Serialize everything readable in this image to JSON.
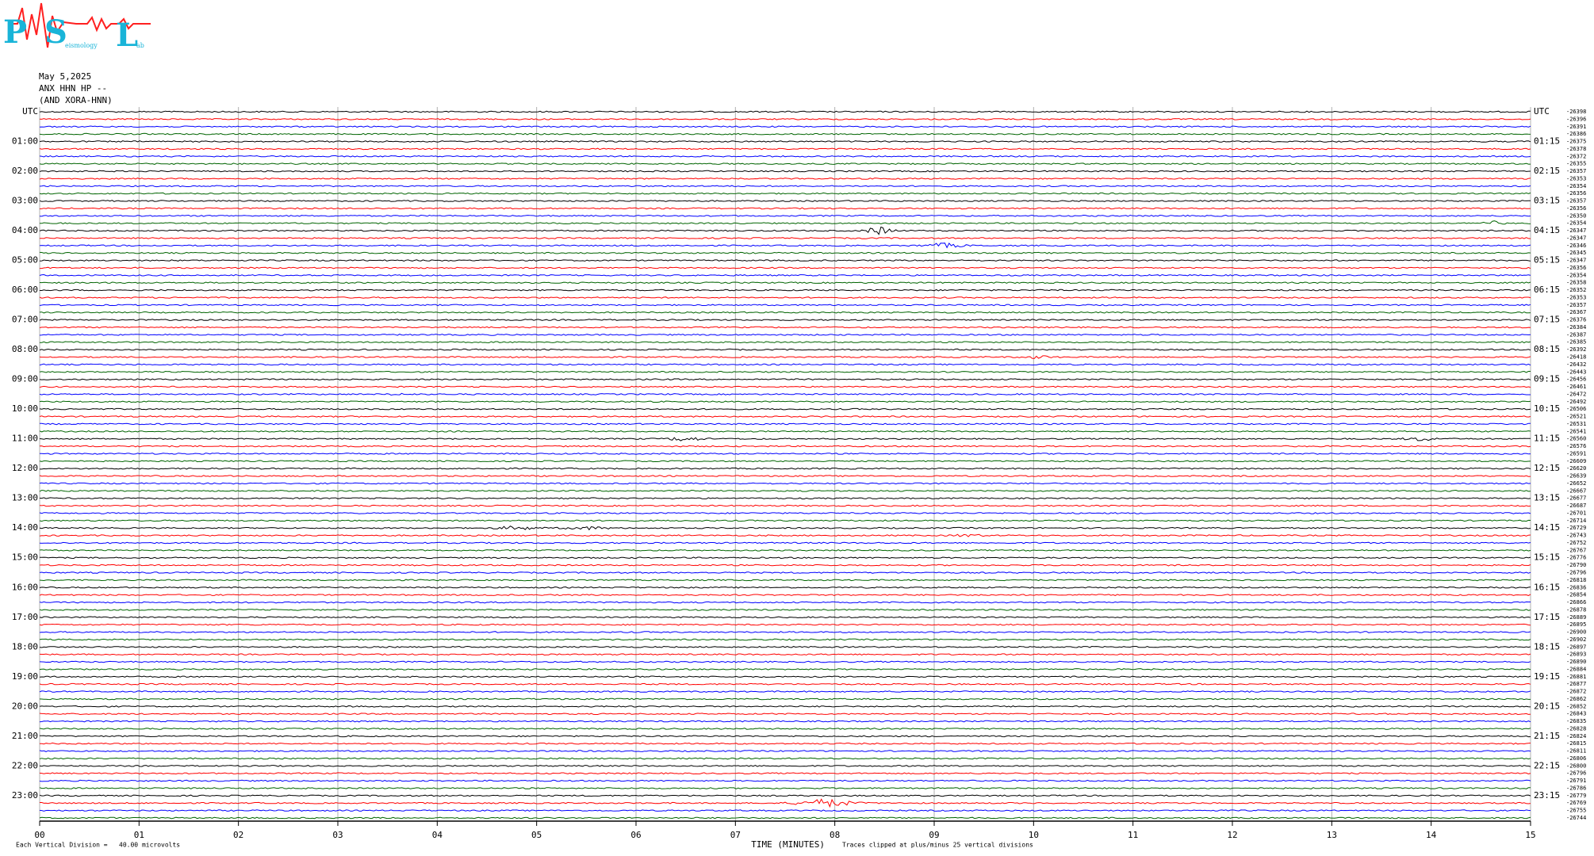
{
  "header": {
    "logo": {
      "letters": [
        "P",
        "S",
        "L"
      ],
      "words": [
        "eismology",
        "ab"
      ]
    },
    "date": "May 5,2025",
    "station": "ANX HHN HP --",
    "network": "(AND XORA-HNN)"
  },
  "chart_data": {
    "type": "helicorder",
    "xlabel": "TIME (MINUTES)",
    "xlim": [
      0,
      15
    ],
    "xticks": [
      {
        "value": 0,
        "label": "00"
      },
      {
        "value": 1,
        "label": "01"
      },
      {
        "value": 2,
        "label": "02"
      },
      {
        "value": 3,
        "label": "03"
      },
      {
        "value": 4,
        "label": "04"
      },
      {
        "value": 5,
        "label": "05"
      },
      {
        "value": 6,
        "label": "06"
      },
      {
        "value": 7,
        "label": "07"
      },
      {
        "value": 8,
        "label": "08"
      },
      {
        "value": 9,
        "label": "09"
      },
      {
        "value": 10,
        "label": "10"
      },
      {
        "value": 11,
        "label": "11"
      },
      {
        "value": 12,
        "label": "12"
      },
      {
        "value": 13,
        "label": "13"
      },
      {
        "value": 14,
        "label": "14"
      },
      {
        "value": 15,
        "label": "15"
      }
    ],
    "grid": true,
    "colors": [
      "#000000",
      "#ff0000",
      "#0000ff",
      "#006400"
    ],
    "left_labels": [
      "UTC",
      "01:00",
      "02:00",
      "03:00",
      "04:00",
      "05:00",
      "06:00",
      "07:00",
      "08:00",
      "09:00",
      "10:00",
      "11:00",
      "12:00",
      "13:00",
      "14:00",
      "15:00",
      "16:00",
      "17:00",
      "18:00",
      "19:00",
      "20:00",
      "21:00",
      "22:00",
      "23:00"
    ],
    "right_labels": [
      "UTC",
      "01:15",
      "02:15",
      "03:15",
      "04:15",
      "05:15",
      "06:15",
      "07:15",
      "08:15",
      "09:15",
      "10:15",
      "11:15",
      "12:15",
      "13:15",
      "14:15",
      "15:15",
      "16:15",
      "17:15",
      "18:15",
      "19:15",
      "20:15",
      "21:15",
      "22:15",
      "23:15"
    ],
    "trace_offsets": [
      "-26398",
      "-26396",
      "-26391",
      "-26386",
      "-26375",
      "-26378",
      "-26372",
      "-26355",
      "-26357",
      "-26353",
      "-26354",
      "-26356",
      "-26357",
      "-26356",
      "-26350",
      "-26354",
      "-26347",
      "-26347",
      "-26346",
      "-26345",
      "-26347",
      "-26356",
      "-26354",
      "-26358",
      "-26352",
      "-26353",
      "-26357",
      "-26367",
      "-26376",
      "-26384",
      "-26387",
      "-26385",
      "-26392",
      "-26418",
      "-26432",
      "-26443",
      "-26456",
      "-26461",
      "-26472",
      "-26492",
      "-26506",
      "-26521",
      "-26531",
      "-26541",
      "-26560",
      "-26576",
      "-26591",
      "-26609",
      "-26620",
      "-26639",
      "-26652",
      "-26667",
      "-26677",
      "-26687",
      "-26701",
      "-26714",
      "-26729",
      "-26743",
      "-26752",
      "-26767",
      "-26776",
      "-26790",
      "-26796",
      "-26818",
      "-26836",
      "-26854",
      "-26866",
      "-26878",
      "-26889",
      "-26895",
      "-26900",
      "-26902",
      "-26897",
      "-26893",
      "-26890",
      "-26884",
      "-26881",
      "-26877",
      "-26872",
      "-26862",
      "-26852",
      "-26843",
      "-26835",
      "-26828",
      "-26824",
      "-26815",
      "-26811",
      "-26806",
      "-26800",
      "-26796",
      "-26791",
      "-26786",
      "-26779",
      "-26769",
      "-26755",
      "-26744"
    ]
  },
  "footer": {
    "scale_note": "Each Vertical Division =   40.00 microvolts",
    "clip_note": "Traces clipped at plus/minus 25 vertical divisions"
  }
}
